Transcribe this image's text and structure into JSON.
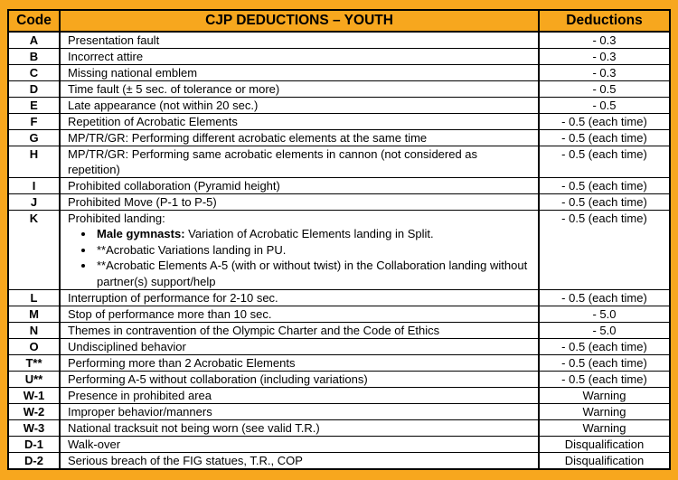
{
  "page": {
    "background_color": "#F7A71E",
    "border_color": "#000000",
    "row_background": "#FFFFFF"
  },
  "table": {
    "headers": {
      "code": "Code",
      "title": "CJP DEDUCTIONS – YOUTH",
      "deductions": "Deductions"
    },
    "rows": [
      {
        "code": "A",
        "description": "Presentation fault",
        "deduction": "- 0.3"
      },
      {
        "code": "B",
        "description": "Incorrect attire",
        "deduction": "- 0.3"
      },
      {
        "code": "C",
        "description": "Missing national emblem",
        "deduction": "- 0.3"
      },
      {
        "code": "D",
        "description": "Time fault (± 5 sec. of tolerance or more)",
        "deduction": "- 0.5"
      },
      {
        "code": "E",
        "description": "Late appearance (not within 20 sec.)",
        "deduction": "- 0.5"
      },
      {
        "code": "F",
        "description": "Repetition of Acrobatic Elements",
        "deduction": "- 0.5 (each time)"
      },
      {
        "code": "G",
        "description": "MP/TR/GR: Performing different acrobatic elements at the same time",
        "deduction": "- 0.5 (each time)"
      },
      {
        "code": "H",
        "description": "MP/TR/GR: Performing same acrobatic elements in cannon (not considered as repetition)",
        "deduction": "- 0.5 (each time)"
      },
      {
        "code": "I",
        "description": "Prohibited collaboration (Pyramid height)",
        "deduction": "- 0.5 (each time)"
      },
      {
        "code": "J",
        "description": "Prohibited Move (P-1 to P-5)",
        "deduction": "- 0.5 (each time)"
      },
      {
        "code": "K",
        "description": "Prohibited landing:",
        "deduction": "- 0.5 (each time)",
        "bullets": [
          {
            "bold": "Male gymnasts:",
            "text": " Variation of Acrobatic Elements landing in Split."
          },
          {
            "text": "**Acrobatic Variations landing in PU."
          },
          {
            "text": "**Acrobatic Elements A-5 (with or without twist) in the Collaboration landing without partner(s) support/help"
          }
        ]
      },
      {
        "code": "L",
        "description": "Interruption of performance for 2-10 sec.",
        "deduction": "- 0.5 (each time)"
      },
      {
        "code": "M",
        "description": "Stop of performance more than 10 sec.",
        "deduction": "- 5.0"
      },
      {
        "code": "N",
        "description": "Themes in contravention of the Olympic Charter and the Code of Ethics",
        "deduction": "- 5.0"
      },
      {
        "code": "O",
        "description": "Undisciplined behavior",
        "deduction": "- 0.5 (each time)"
      },
      {
        "code": "T**",
        "description": "Performing more than 2 Acrobatic Elements",
        "deduction": "- 0.5 (each time)"
      },
      {
        "code": "U**",
        "description": "Performing A-5 without collaboration (including variations)",
        "deduction": "- 0.5 (each time)"
      },
      {
        "code": "W-1",
        "description": "Presence in prohibited area",
        "deduction": "Warning"
      },
      {
        "code": "W-2",
        "description": "Improper behavior/manners",
        "deduction": "Warning"
      },
      {
        "code": "W-3",
        "description": "National tracksuit not being worn (see valid T.R.)",
        "deduction": "Warning"
      },
      {
        "code": "D-1",
        "description": "Walk-over",
        "deduction": "Disqualification"
      },
      {
        "code": "D-2",
        "description": "Serious breach of the FIG statues, T.R., COP",
        "deduction": "Disqualification"
      }
    ]
  }
}
